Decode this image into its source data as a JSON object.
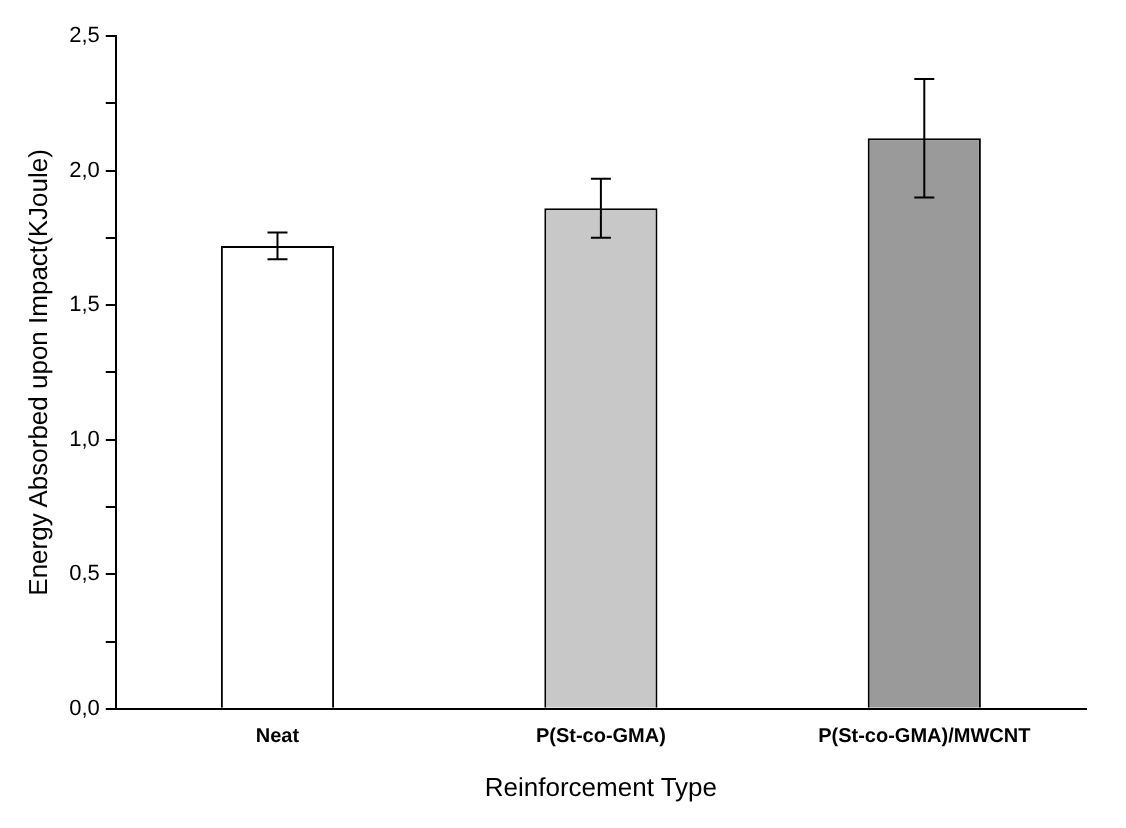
{
  "chart_data": {
    "type": "bar",
    "xlabel": "Reinforcement Type",
    "ylabel": "Energy Absorbed upon Impact(KJoule)",
    "categories": [
      "Neat",
      "P(St-co-GMA)",
      "P(St-co-GMA)/MWCNT"
    ],
    "values": [
      1.72,
      1.86,
      2.12
    ],
    "errors": [
      0.05,
      0.11,
      0.22
    ],
    "colors": [
      "#ffffff",
      "#c8c8c8",
      "#9a9a9a"
    ],
    "ylim": [
      0,
      2.5
    ],
    "yticks": [
      {
        "value": 0,
        "label": "0,0"
      },
      {
        "value": 0.25,
        "label": null
      },
      {
        "value": 0.5,
        "label": "0,5"
      },
      {
        "value": 0.75,
        "label": null
      },
      {
        "value": 1,
        "label": "1,0"
      },
      {
        "value": 1.25,
        "label": null
      },
      {
        "value": 1.5,
        "label": "1,5"
      },
      {
        "value": 1.75,
        "label": null
      },
      {
        "value": 2,
        "label": "2,0"
      },
      {
        "value": 2.25,
        "label": null
      },
      {
        "value": 2.5,
        "label": "2,5"
      }
    ],
    "grid": false,
    "legend": false
  }
}
